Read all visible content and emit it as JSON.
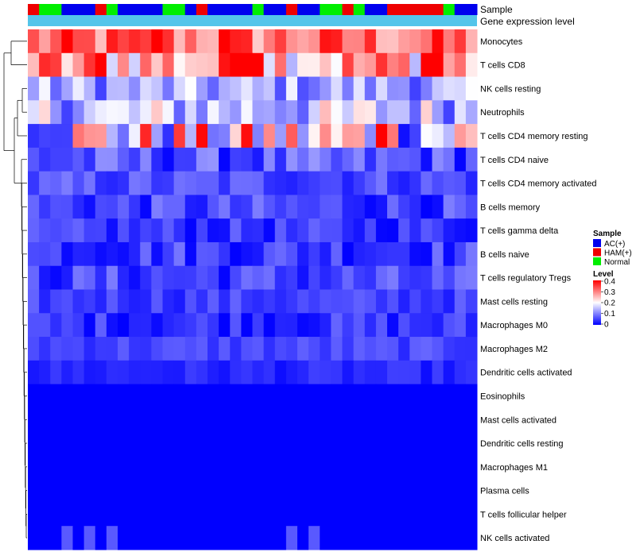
{
  "chart_data": {
    "type": "heatmap",
    "annotations": {
      "sample_label": "Sample",
      "expression_label": "Gene expression level"
    },
    "sample_groups": [
      {
        "name": "AC(+)",
        "color": "#0000ee"
      },
      {
        "name": "HAM(+)",
        "color": "#ee0000"
      },
      {
        "name": "Normal",
        "color": "#00ee00"
      }
    ],
    "expression_annotation_color": "#54c5ea",
    "column_samples": [
      "HAM(+)",
      "Normal",
      "Normal",
      "AC(+)",
      "AC(+)",
      "AC(+)",
      "HAM(+)",
      "Normal",
      "AC(+)",
      "AC(+)",
      "AC(+)",
      "AC(+)",
      "Normal",
      "Normal",
      "AC(+)",
      "HAM(+)",
      "AC(+)",
      "AC(+)",
      "AC(+)",
      "AC(+)",
      "Normal",
      "AC(+)",
      "AC(+)",
      "HAM(+)",
      "AC(+)",
      "AC(+)",
      "Normal",
      "Normal",
      "HAM(+)",
      "Normal",
      "AC(+)",
      "AC(+)",
      "HAM(+)",
      "HAM(+)",
      "HAM(+)",
      "HAM(+)",
      "HAM(+)",
      "Normal",
      "AC(+)",
      "AC(+)"
    ],
    "rows": [
      "Monocytes",
      "T cells CD8",
      "NK cells resting",
      "Neutrophils",
      "T cells CD4 memory resting",
      "T cells CD4 naive",
      "T cells CD4 memory activated",
      "B cells memory",
      "T cells gamma delta",
      "B cells naive",
      "T cells regulatory  Tregs",
      "Mast cells resting",
      "Macrophages M0",
      "Macrophages M2",
      "Dendritic cells activated",
      "Eosinophils",
      "Mast cells activated",
      "Dendritic cells resting",
      "Macrophages M1",
      "Plasma cells",
      "T cells follicular helper",
      "NK cells activated"
    ],
    "row_level_range": [
      [
        0.22,
        0.4
      ],
      [
        0.14,
        0.4
      ],
      [
        0.05,
        0.2
      ],
      [
        0.05,
        0.26
      ],
      [
        0.0,
        0.4
      ],
      [
        0.0,
        0.12
      ],
      [
        0.02,
        0.1
      ],
      [
        0.0,
        0.1
      ],
      [
        0.0,
        0.08
      ],
      [
        0.0,
        0.1
      ],
      [
        0.0,
        0.1
      ],
      [
        0.02,
        0.08
      ],
      [
        0.0,
        0.08
      ],
      [
        0.03,
        0.08
      ],
      [
        0.01,
        0.05
      ],
      [
        0.0,
        0.0
      ],
      [
        0.0,
        0.0
      ],
      [
        0.0,
        0.0
      ],
      [
        0.0,
        0.0
      ],
      [
        0.0,
        0.0
      ],
      [
        0.0,
        0.0
      ],
      [
        0.0,
        0.0
      ]
    ],
    "row_overrides": {
      "T cells CD8": {
        "cols": [
          6,
          18,
          19,
          20,
          35,
          36
        ],
        "value": 0.4
      },
      "T cells CD4 memory resting": {
        "cols": [
          31
        ],
        "value": 0.4
      },
      "Monocytes": {
        "cols": [
          11,
          17
        ],
        "value": 0.4
      },
      "NK cells activated": {
        "cols": [
          3,
          5,
          7,
          23,
          25
        ],
        "value": 0.07
      }
    },
    "legend": {
      "sample_title": "Sample",
      "level_title": "Level",
      "level_ticks": [
        "0.4",
        "0.3",
        "0.2",
        "0.1",
        "0"
      ],
      "level_min": 0,
      "level_max": 0.4,
      "low_color": "#0000ff",
      "mid_color": "#ffffff",
      "high_color": "#ff0000"
    }
  }
}
